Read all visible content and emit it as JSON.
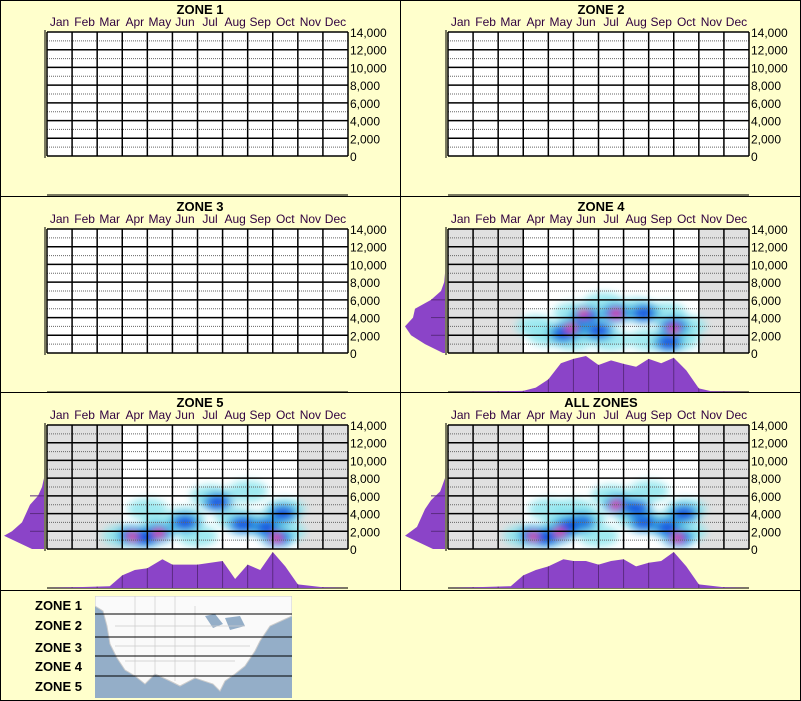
{
  "axes": {
    "months": [
      "Jan",
      "Feb",
      "Mar",
      "Apr",
      "May",
      "Jun",
      "Jul",
      "Aug",
      "Sep",
      "Oct",
      "Nov",
      "Dec"
    ],
    "y_ticks": [
      "0",
      "2,000",
      "4,000",
      "6,000",
      "8,000",
      "10,000",
      "12,000",
      "14,000"
    ],
    "ylim": [
      0,
      14000
    ]
  },
  "colors": {
    "background": "#ffffcc",
    "inactive_month": "#e0e0e0",
    "density": "#8b44c8",
    "heat_low": "#8fe6ee",
    "heat_mid": "#0a3de0",
    "heat_high": "#ff2a8a"
  },
  "chart_data": [
    {
      "type": "heatmap",
      "title": "ZONE 1",
      "has_data": false,
      "active_months": [],
      "hotspots": [],
      "month_density": null,
      "elevation_density": null
    },
    {
      "type": "heatmap",
      "title": "ZONE 2",
      "has_data": false,
      "active_months": [],
      "hotspots": [],
      "month_density": null,
      "elevation_density": null
    },
    {
      "type": "heatmap",
      "title": "ZONE 3",
      "has_data": false,
      "active_months": [],
      "hotspots": [],
      "month_density": null,
      "elevation_density": null
    },
    {
      "type": "heatmap",
      "title": "ZONE 4",
      "has_data": true,
      "active_months": [
        "Apr",
        "May",
        "Jun",
        "Jul",
        "Aug",
        "Sep",
        "Oct"
      ],
      "hotspots": [
        {
          "month": 4.0,
          "ft": 2000,
          "level": 1
        },
        {
          "month": 5.0,
          "ft": 1500,
          "level": 1
        },
        {
          "month": 6.5,
          "ft": 1500,
          "level": 1
        },
        {
          "month": 8.0,
          "ft": 1500,
          "level": 1
        },
        {
          "month": 9.2,
          "ft": 1500,
          "level": 1
        },
        {
          "month": 6.2,
          "ft": 5600,
          "level": 1
        },
        {
          "month": 7.5,
          "ft": 5000,
          "level": 1
        },
        {
          "month": 3.5,
          "ft": 3000,
          "level": 1
        },
        {
          "month": 5.0,
          "ft": 4500,
          "level": 1
        },
        {
          "month": 8.7,
          "ft": 4500,
          "level": 1
        },
        {
          "month": 9.5,
          "ft": 3000,
          "level": 1
        },
        {
          "month": 5.0,
          "ft": 2800,
          "level": 2
        },
        {
          "month": 5.5,
          "ft": 4200,
          "level": 2
        },
        {
          "month": 6.7,
          "ft": 4500,
          "level": 2
        },
        {
          "month": 7.8,
          "ft": 4500,
          "level": 2
        },
        {
          "month": 9.0,
          "ft": 3000,
          "level": 2
        },
        {
          "month": 4.6,
          "ft": 2200,
          "level": 2
        },
        {
          "month": 8.8,
          "ft": 1200,
          "level": 2
        },
        {
          "month": 6.0,
          "ft": 2500,
          "level": 2
        },
        {
          "month": 4.9,
          "ft": 2800,
          "level": 3
        },
        {
          "month": 5.4,
          "ft": 4500,
          "level": 3
        },
        {
          "month": 6.7,
          "ft": 4500,
          "level": 3
        },
        {
          "month": 9.0,
          "ft": 2700,
          "level": 3
        }
      ],
      "month_density": {
        "month": [
          0,
          3,
          3.5,
          4,
          4.5,
          5,
          5.5,
          6,
          6.5,
          7,
          7.5,
          8,
          8.5,
          9,
          9.5,
          10,
          10.5,
          12
        ],
        "value": [
          0,
          0.03,
          0.12,
          0.35,
          0.8,
          0.92,
          1.0,
          0.75,
          0.88,
          0.78,
          0.7,
          0.92,
          0.8,
          0.95,
          0.6,
          0.1,
          0.02,
          0
        ]
      },
      "elevation_density": {
        "ft": [
          0,
          1000,
          2000,
          3000,
          4000,
          5000,
          6000,
          7000,
          8000,
          9000
        ],
        "value": [
          0.05,
          0.5,
          0.85,
          1.0,
          0.8,
          0.75,
          0.35,
          0.1,
          0.02,
          0
        ]
      }
    },
    {
      "type": "heatmap",
      "title": "ZONE 5",
      "has_data": true,
      "active_months": [
        "Apr",
        "May",
        "Jun",
        "Jul",
        "Aug",
        "Sep",
        "Oct"
      ],
      "hotspots": [
        {
          "month": 3.0,
          "ft": 1500,
          "level": 1
        },
        {
          "month": 4.5,
          "ft": 2500,
          "level": 1
        },
        {
          "month": 5.5,
          "ft": 3500,
          "level": 1
        },
        {
          "month": 6.5,
          "ft": 6000,
          "level": 1
        },
        {
          "month": 8.0,
          "ft": 6500,
          "level": 1
        },
        {
          "month": 8.5,
          "ft": 3000,
          "level": 1
        },
        {
          "month": 9.5,
          "ft": 2000,
          "level": 1
        },
        {
          "month": 6.0,
          "ft": 1500,
          "level": 1
        },
        {
          "month": 4.0,
          "ft": 4500,
          "level": 1
        },
        {
          "month": 7.5,
          "ft": 3500,
          "level": 1
        },
        {
          "month": 9.5,
          "ft": 4500,
          "level": 1
        },
        {
          "month": 3.4,
          "ft": 1500,
          "level": 2
        },
        {
          "month": 4.4,
          "ft": 1800,
          "level": 2
        },
        {
          "month": 6.8,
          "ft": 5300,
          "level": 2
        },
        {
          "month": 9.2,
          "ft": 1300,
          "level": 2
        },
        {
          "month": 8.7,
          "ft": 2500,
          "level": 2
        },
        {
          "month": 9.4,
          "ft": 4000,
          "level": 2
        },
        {
          "month": 5.5,
          "ft": 3000,
          "level": 2
        },
        {
          "month": 3.9,
          "ft": 1300,
          "level": 2
        },
        {
          "month": 7.8,
          "ft": 2800,
          "level": 2
        },
        {
          "month": 3.4,
          "ft": 1400,
          "level": 3
        },
        {
          "month": 4.45,
          "ft": 1800,
          "level": 3
        },
        {
          "month": 9.15,
          "ft": 1300,
          "level": 3
        }
      ],
      "month_density": {
        "month": [
          0,
          2.5,
          3,
          3.5,
          4,
          4.6,
          5,
          6,
          7,
          7.5,
          8,
          8.5,
          9,
          9.5,
          10,
          11,
          12
        ],
        "value": [
          0,
          0.05,
          0.35,
          0.5,
          0.55,
          0.8,
          0.65,
          0.65,
          0.75,
          0.25,
          0.65,
          0.5,
          1.0,
          0.6,
          0.1,
          0.02,
          0
        ]
      },
      "elevation_density": {
        "ft": [
          0,
          1500,
          2000,
          3000,
          4000,
          5000,
          6000,
          7000,
          8000
        ],
        "value": [
          0.3,
          1.0,
          0.8,
          0.55,
          0.45,
          0.35,
          0.15,
          0.05,
          0
        ]
      }
    },
    {
      "type": "heatmap",
      "title": "ALL ZONES",
      "has_data": true,
      "active_months": [
        "Apr",
        "May",
        "Jun",
        "Jul",
        "Aug",
        "Sep",
        "Oct"
      ],
      "hotspots": [
        {
          "month": 3.0,
          "ft": 1500,
          "level": 1
        },
        {
          "month": 4.5,
          "ft": 2500,
          "level": 1
        },
        {
          "month": 5.5,
          "ft": 3500,
          "level": 1
        },
        {
          "month": 6.5,
          "ft": 6000,
          "level": 1
        },
        {
          "month": 8.0,
          "ft": 6500,
          "level": 1
        },
        {
          "month": 8.5,
          "ft": 3000,
          "level": 1
        },
        {
          "month": 9.5,
          "ft": 2000,
          "level": 1
        },
        {
          "month": 6.0,
          "ft": 1500,
          "level": 1
        },
        {
          "month": 4.0,
          "ft": 4500,
          "level": 1
        },
        {
          "month": 7.5,
          "ft": 3500,
          "level": 1
        },
        {
          "month": 9.5,
          "ft": 4500,
          "level": 1
        },
        {
          "month": 5.0,
          "ft": 4500,
          "level": 1
        },
        {
          "month": 3.4,
          "ft": 1500,
          "level": 2
        },
        {
          "month": 4.4,
          "ft": 1800,
          "level": 2
        },
        {
          "month": 6.8,
          "ft": 5000,
          "level": 2
        },
        {
          "month": 9.2,
          "ft": 1300,
          "level": 2
        },
        {
          "month": 8.7,
          "ft": 2500,
          "level": 2
        },
        {
          "month": 9.4,
          "ft": 4000,
          "level": 2
        },
        {
          "month": 5.3,
          "ft": 3000,
          "level": 2
        },
        {
          "month": 3.9,
          "ft": 1300,
          "level": 2
        },
        {
          "month": 7.8,
          "ft": 3000,
          "level": 2
        },
        {
          "month": 4.8,
          "ft": 2600,
          "level": 2
        },
        {
          "month": 7.5,
          "ft": 4600,
          "level": 2
        },
        {
          "month": 3.4,
          "ft": 1400,
          "level": 3
        },
        {
          "month": 4.45,
          "ft": 1900,
          "level": 3
        },
        {
          "month": 9.15,
          "ft": 1300,
          "level": 3
        },
        {
          "month": 6.7,
          "ft": 5000,
          "level": 3
        }
      ],
      "month_density": {
        "month": [
          0,
          2.5,
          3,
          3.5,
          4,
          4.6,
          5,
          5.5,
          6,
          6.5,
          7,
          7.5,
          8,
          8.5,
          9,
          9.5,
          10,
          11,
          12
        ],
        "value": [
          0,
          0.05,
          0.35,
          0.5,
          0.6,
          0.8,
          0.75,
          0.75,
          0.65,
          0.75,
          0.8,
          0.6,
          0.7,
          0.75,
          1.0,
          0.6,
          0.1,
          0.02,
          0
        ]
      },
      "elevation_density": {
        "ft": [
          0,
          1500,
          2500,
          3500,
          4500,
          5500,
          6500,
          8000
        ],
        "value": [
          0.3,
          1.0,
          0.7,
          0.6,
          0.5,
          0.35,
          0.12,
          0
        ]
      }
    }
  ],
  "legend": {
    "zones": [
      "ZONE 1",
      "ZONE 2",
      "ZONE 3",
      "ZONE 4",
      "ZONE 5"
    ]
  }
}
